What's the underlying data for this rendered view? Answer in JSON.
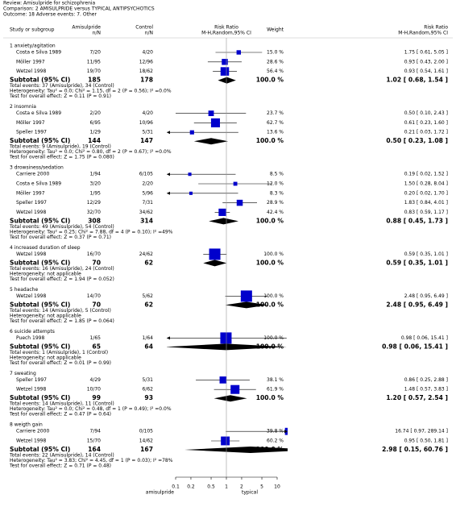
{
  "chart_data": {
    "type": "forest",
    "review": "Review: Amisulpride for schizophrenia",
    "comparison": "Comparison: 2 AMISULPRIDE versus TYPICAL ANTIPSYCHOTICS",
    "outcome": "Outcome: 18 Adverse events: 7. Other",
    "columns": {
      "study": "Study or subgroup",
      "exp": [
        "Amisulpride",
        "n/N"
      ],
      "ctrl": [
        "Control",
        "n/N"
      ],
      "plot": [
        "Risk Ratio",
        "M-H,Random,95% CI"
      ],
      "weight": "Weight",
      "effect": [
        "Risk Ratio",
        "M-H,Random,95% CI"
      ]
    },
    "xscale": "log",
    "xlim": [
      0.1,
      10
    ],
    "xticks": [
      0.1,
      0.2,
      0.5,
      1,
      2,
      5,
      10
    ],
    "x_left_label": "amisulpride",
    "x_right_label": "typical",
    "box_color": "#0000cc",
    "diamond_color": "#000000",
    "groups": [
      {
        "title": "1 anxiety/agitation",
        "studies": [
          {
            "name": "Costa e Silva 1989",
            "n1": "7/20",
            "n2": "4/20",
            "weight": 15.0,
            "weight_label": "15.0 %",
            "rr": 1.75,
            "lo": 0.61,
            "hi": 5.05,
            "ci_label": "1.75 [ 0.61, 5.05 ]"
          },
          {
            "name": "Möller 1997",
            "n1": "11/95",
            "n2": "12/96",
            "weight": 28.6,
            "weight_label": "28.6 %",
            "rr": 0.93,
            "lo": 0.43,
            "hi": 2.0,
            "ci_label": "0.93 [ 0.43, 2.00 ]"
          },
          {
            "name": "Wetzel 1998",
            "n1": "19/70",
            "n2": "18/62",
            "weight": 56.4,
            "weight_label": "56.4 %",
            "rr": 0.93,
            "lo": 0.54,
            "hi": 1.61,
            "ci_label": "0.93 [ 0.54, 1.61 ]"
          }
        ],
        "subtotal": {
          "label": "Subtotal (95% CI)",
          "n1": 185,
          "n2": 178,
          "weight_label": "100.0 %",
          "rr": 1.02,
          "lo": 0.68,
          "hi": 1.54,
          "ci_label": "1.02 [ 0.68, 1.54 ]"
        },
        "total_events": "Total events: 37 (Amisulpride), 34 (Control)",
        "heterogeneity": "Heterogeneity: Tau² = 0.0; Chi² = 1.15, df = 2 (P = 0.56); I² =0.0%",
        "overall_effect": "Test for overall effect: Z = 0.11 (P = 0.91)"
      },
      {
        "title": "2 insomnia",
        "studies": [
          {
            "name": "Costa e Silva 1989",
            "n1": "2/20",
            "n2": "4/20",
            "weight": 23.7,
            "weight_label": "23.7 %",
            "rr": 0.5,
            "lo": 0.1,
            "hi": 2.43,
            "ci_label": "0.50 [ 0.10, 2.43 ]"
          },
          {
            "name": "Möller 1997",
            "n1": "6/95",
            "n2": "10/96",
            "weight": 62.7,
            "weight_label": "62.7 %",
            "rr": 0.61,
            "lo": 0.23,
            "hi": 1.6,
            "ci_label": "0.61 [ 0.23, 1.60 ]"
          },
          {
            "name": "Speller 1997",
            "n1": "1/29",
            "n2": "5/31",
            "weight": 13.6,
            "weight_label": "13.6 %",
            "rr": 0.21,
            "lo": 0.03,
            "hi": 1.72,
            "ci_label": "0.21 [ 0.03, 1.72 ]"
          }
        ],
        "subtotal": {
          "label": "Subtotal (95% CI)",
          "n1": 144,
          "n2": 147,
          "weight_label": "100.0 %",
          "rr": 0.5,
          "lo": 0.23,
          "hi": 1.08,
          "ci_label": "0.50 [ 0.23, 1.08 ]"
        },
        "total_events": "Total events: 9 (Amisulpride), 19 (Control)",
        "heterogeneity": "Heterogeneity: Tau² = 0.0; Chi² = 0.80, df = 2 (P = 0.67); I² =0.0%",
        "overall_effect": "Test for overall effect: Z = 1.75 (P = 0.080)"
      },
      {
        "title": "3 drowsiness/sedation",
        "studies": [
          {
            "name": "Carriere 2000",
            "n1": "1/94",
            "n2": "6/105",
            "weight": 8.5,
            "weight_label": "8.5 %",
            "rr": 0.19,
            "lo": 0.02,
            "hi": 1.52,
            "ci_label": "0.19 [ 0.02, 1.52 ]"
          },
          {
            "name": "Costa e Silva 1989",
            "n1": "3/20",
            "n2": "2/20",
            "weight": 12.0,
            "weight_label": "12.0 %",
            "rr": 1.5,
            "lo": 0.28,
            "hi": 8.04,
            "ci_label": "1.50 [ 0.28, 8.04 ]"
          },
          {
            "name": "Möller 1997",
            "n1": "1/95",
            "n2": "5/96",
            "weight": 8.3,
            "weight_label": "8.3 %",
            "rr": 0.2,
            "lo": 0.02,
            "hi": 1.7,
            "ci_label": "0.20 [ 0.02, 1.70 ]"
          },
          {
            "name": "Speller 1997",
            "n1": "12/29",
            "n2": "7/31",
            "weight": 28.9,
            "weight_label": "28.9 %",
            "rr": 1.83,
            "lo": 0.84,
            "hi": 4.01,
            "ci_label": "1.83 [ 0.84, 4.01 ]"
          },
          {
            "name": "Wetzel 1998",
            "n1": "32/70",
            "n2": "34/62",
            "weight": 42.4,
            "weight_label": "42.4 %",
            "rr": 0.83,
            "lo": 0.59,
            "hi": 1.17,
            "ci_label": "0.83 [ 0.59, 1.17 ]"
          }
        ],
        "subtotal": {
          "label": "Subtotal (95% CI)",
          "n1": 308,
          "n2": 314,
          "weight_label": "100.0 %",
          "rr": 0.88,
          "lo": 0.45,
          "hi": 1.73,
          "ci_label": "0.88 [ 0.45, 1.73 ]"
        },
        "total_events": "Total events: 49 (Amisulpride), 54 (Control)",
        "heterogeneity": "Heterogeneity: Tau² = 0.25; Chi² = 7.88, df = 4 (P = 0.10); I² =49%",
        "overall_effect": "Test for overall effect: Z = 0.37 (P = 0.71)"
      },
      {
        "title": "4 increased duration of sleep",
        "studies": [
          {
            "name": "Wetzel 1998",
            "n1": "16/70",
            "n2": "24/62",
            "weight": 100.0,
            "weight_label": "100.0 %",
            "rr": 0.59,
            "lo": 0.35,
            "hi": 1.01,
            "ci_label": "0.59 [ 0.35, 1.01 ]"
          }
        ],
        "subtotal": {
          "label": "Subtotal (95% CI)",
          "n1": 70,
          "n2": 62,
          "weight_label": "100.0 %",
          "rr": 0.59,
          "lo": 0.35,
          "hi": 1.01,
          "ci_label": "0.59 [ 0.35, 1.01 ]"
        },
        "total_events": "Total events: 16 (Amisulpride), 24 (Control)",
        "heterogeneity": "Heterogeneity: not applicable",
        "overall_effect": "Test for overall effect: Z = 1.94 (P = 0.052)"
      },
      {
        "title": "5 headache",
        "studies": [
          {
            "name": "Wetzel 1998",
            "n1": "14/70",
            "n2": "5/62",
            "weight": 100.0,
            "weight_label": "100.0 %",
            "rr": 2.48,
            "lo": 0.95,
            "hi": 6.49,
            "ci_label": "2.48 [ 0.95, 6.49 ]"
          }
        ],
        "subtotal": {
          "label": "Subtotal (95% CI)",
          "n1": 70,
          "n2": 62,
          "weight_label": "100.0 %",
          "rr": 2.48,
          "lo": 0.95,
          "hi": 6.49,
          "ci_label": "2.48 [ 0.95, 6.49 ]"
        },
        "total_events": "Total events: 14 (Amisulpride), 5 (Control)",
        "heterogeneity": "Heterogeneity: not applicable",
        "overall_effect": "Test for overall effect: Z = 1.85 (P = 0.064)"
      },
      {
        "title": "6 suicide attempts",
        "studies": [
          {
            "name": "Puech 1998",
            "n1": "1/65",
            "n2": "1/64",
            "weight": 100.0,
            "weight_label": "100.0 %",
            "rr": 0.98,
            "lo": 0.06,
            "hi": 15.41,
            "ci_label": "0.98 [ 0.06, 15.41 ]"
          }
        ],
        "subtotal": {
          "label": "Subtotal (95% CI)",
          "n1": 65,
          "n2": 64,
          "weight_label": "100.0 %",
          "rr": 0.98,
          "lo": 0.06,
          "hi": 15.41,
          "ci_label": "0.98 [ 0.06, 15.41 ]"
        },
        "total_events": "Total events: 1 (Amisulpride), 1 (Control)",
        "heterogeneity": "Heterogeneity: not applicable",
        "overall_effect": "Test for overall effect: Z = 0.01 (P = 0.99)"
      },
      {
        "title": "7 sweating",
        "studies": [
          {
            "name": "Speller 1997",
            "n1": "4/29",
            "n2": "5/31",
            "weight": 38.1,
            "weight_label": "38.1 %",
            "rr": 0.86,
            "lo": 0.25,
            "hi": 2.88,
            "ci_label": "0.86 [ 0.25, 2.88 ]"
          },
          {
            "name": "Wetzel 1998",
            "n1": "10/70",
            "n2": "6/62",
            "weight": 61.9,
            "weight_label": "61.9 %",
            "rr": 1.48,
            "lo": 0.57,
            "hi": 3.83,
            "ci_label": "1.48 [ 0.57, 3.83 ]"
          }
        ],
        "subtotal": {
          "label": "Subtotal (95% CI)",
          "n1": 99,
          "n2": 93,
          "weight_label": "100.0 %",
          "rr": 1.2,
          "lo": 0.57,
          "hi": 2.54,
          "ci_label": "1.20 [ 0.57, 2.54 ]"
        },
        "total_events": "Total events: 14 (Amisulpride), 11 (Control)",
        "heterogeneity": "Heterogeneity: Tau² = 0.0; Chi² = 0.48, df = 1 (P = 0.49); I² =0.0%",
        "overall_effect": "Test for overall effect: Z = 0.47 (P = 0.64)"
      },
      {
        "title": "8 weigth gain",
        "studies": [
          {
            "name": "Carriere 2000",
            "n1": "7/94",
            "n2": "0/105",
            "weight": 39.8,
            "weight_label": "39.8 %",
            "rr": 16.74,
            "lo": 0.97,
            "hi": 289.14,
            "ci_label": "16.74 [ 0.97, 289.14 ]"
          },
          {
            "name": "Wetzel 1998",
            "n1": "15/70",
            "n2": "14/62",
            "weight": 60.2,
            "weight_label": "60.2 %",
            "rr": 0.95,
            "lo": 0.5,
            "hi": 1.81,
            "ci_label": "0.95 [ 0.50, 1.81 ]"
          }
        ],
        "subtotal": {
          "label": "Subtotal (95% CI)",
          "n1": 164,
          "n2": 167,
          "weight_label": "100.0 %",
          "rr": 2.98,
          "lo": 0.15,
          "hi": 60.76,
          "ci_label": "2.98 [ 0.15, 60.76 ]"
        },
        "total_events": "Total events: 22 (Amisulpride), 14 (Control)",
        "heterogeneity": "Heterogeneity: Tau² = 3.83; Chi² = 4.45, df = 1 (P = 0.03); I² =78%",
        "overall_effect": "Test for overall effect: Z = 0.71 (P = 0.48)"
      }
    ]
  }
}
